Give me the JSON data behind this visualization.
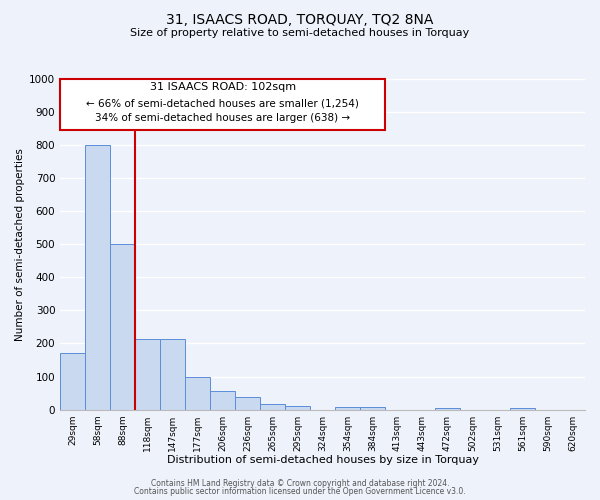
{
  "title": "31, ISAACS ROAD, TORQUAY, TQ2 8NA",
  "subtitle": "Size of property relative to semi-detached houses in Torquay",
  "xlabel": "Distribution of semi-detached houses by size in Torquay",
  "ylabel": "Number of semi-detached properties",
  "bar_labels": [
    "29sqm",
    "58sqm",
    "88sqm",
    "118sqm",
    "147sqm",
    "177sqm",
    "206sqm",
    "236sqm",
    "265sqm",
    "295sqm",
    "324sqm",
    "354sqm",
    "384sqm",
    "413sqm",
    "443sqm",
    "472sqm",
    "502sqm",
    "531sqm",
    "561sqm",
    "590sqm",
    "620sqm"
  ],
  "bar_values": [
    170,
    800,
    500,
    215,
    215,
    100,
    55,
    37,
    18,
    10,
    0,
    8,
    8,
    0,
    0,
    5,
    0,
    0,
    5,
    0,
    0
  ],
  "bar_color": "#c9d9f0",
  "bar_edge_color": "#5b8dd9",
  "ylim": [
    0,
    1000
  ],
  "yticks": [
    0,
    100,
    200,
    300,
    400,
    500,
    600,
    700,
    800,
    900,
    1000
  ],
  "property_line_x": 2.5,
  "property_line_color": "#cc0000",
  "annotation_title": "31 ISAACS ROAD: 102sqm",
  "annotation_line1": "← 66% of semi-detached houses are smaller (1,254)",
  "annotation_line2": "34% of semi-detached houses are larger (638) →",
  "annotation_box_color": "#cc0000",
  "footer_line1": "Contains HM Land Registry data © Crown copyright and database right 2024.",
  "footer_line2": "Contains public sector information licensed under the Open Government Licence v3.0.",
  "background_color": "#eef2fb",
  "plot_bg_color": "#eef2fb",
  "grid_color": "#ffffff"
}
